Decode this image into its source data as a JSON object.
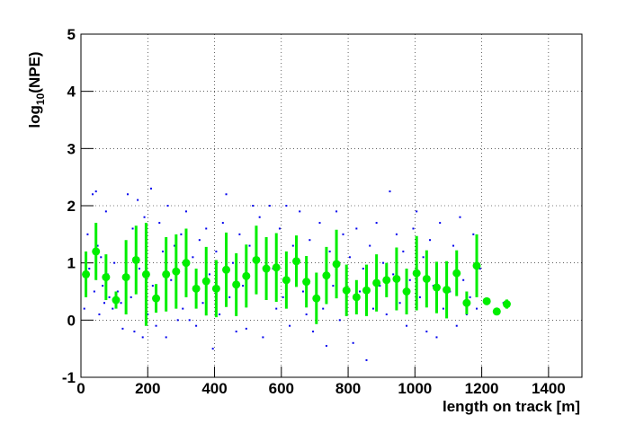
{
  "chart_data": {
    "type": "scatter",
    "x_label": "length on track [m]",
    "y_label": {
      "base": "log",
      "sub": "10",
      "rest": "(NPE)"
    },
    "xlim": [
      0,
      1500
    ],
    "ylim": [
      -1,
      5
    ],
    "xticks": [
      0,
      200,
      400,
      600,
      800,
      1000,
      1200,
      1400
    ],
    "yticks": [
      -1,
      0,
      1,
      2,
      3,
      4,
      5
    ],
    "grid": true,
    "scatter": {
      "color": "#0000ee",
      "x": [
        10,
        20,
        25,
        35,
        40,
        45,
        50,
        55,
        60,
        65,
        70,
        75,
        80,
        85,
        95,
        100,
        110,
        120,
        125,
        135,
        140,
        150,
        155,
        160,
        170,
        175,
        185,
        190,
        200,
        210,
        215,
        225,
        235,
        245,
        255,
        260,
        270,
        280,
        290,
        300,
        305,
        315,
        325,
        335,
        345,
        355,
        365,
        375,
        385,
        395,
        405,
        415,
        425,
        435,
        445,
        455,
        465,
        475,
        485,
        495,
        505,
        515,
        525,
        535,
        545,
        555,
        565,
        575,
        585,
        595,
        605,
        615,
        625,
        635,
        645,
        655,
        665,
        675,
        685,
        695,
        705,
        715,
        725,
        735,
        745,
        755,
        765,
        775,
        785,
        795,
        805,
        815,
        825,
        835,
        845,
        855,
        865,
        875,
        885,
        895,
        905,
        915,
        925,
        935,
        945,
        955,
        965,
        975,
        985,
        995,
        1005,
        1015,
        1025,
        1035,
        1045,
        1055,
        1065,
        1075,
        1085,
        1095,
        1105,
        1115,
        1125,
        1135,
        1145,
        1155,
        1165,
        1175,
        1185,
        1195,
        1215,
        1245,
        1265
      ],
      "y": [
        0.2,
        1.5,
        0.9,
        2.2,
        0.5,
        2.25,
        1.3,
        0.1,
        1.1,
        0.6,
        0.3,
        1.9,
        0.8,
        0.4,
        0.2,
        1.0,
        0.5,
        0.3,
        -0.15,
        1.3,
        2.2,
        0.4,
        1.6,
        -0.2,
        2.1,
        0.9,
        -0.3,
        1.8,
        0.1,
        2.3,
        0.6,
        -0.1,
        1.7,
        1.2,
        -0.3,
        2.0,
        0.7,
        1.3,
        0.0,
        1.5,
        0.2,
        1.9,
        0.0,
        1.1,
        -0.1,
        1.4,
        0.3,
        1.6,
        0.8,
        -0.5,
        1.2,
        0.1,
        1.7,
        2.2,
        0.4,
        1.0,
        -0.2,
        1.5,
        0.6,
        -0.15,
        1.3,
        2.0,
        0.5,
        1.8,
        -0.3,
        1.2,
        2.0,
        0.9,
        0.2,
        1.6,
        0.4,
        2.0,
        -0.1,
        1.3,
        0.9,
        1.9,
        0.5,
        0.1,
        1.4,
        -0.2,
        0.8,
        1.7,
        0.2,
        -0.45,
        1.2,
        0.6,
        1.9,
        0.0,
        1.5,
        0.3,
        1.1,
        -0.4,
        1.6,
        0.5,
        0.9,
        -0.7,
        1.3,
        0.2,
        1.7,
        0.6,
        1.0,
        0.1,
        2.25,
        0.8,
        1.5,
        0.3,
        1.2,
        -0.1,
        0.7,
        1.6,
        1.9,
        0.4,
        1.1,
        -0.2,
        1.4,
        0.6,
        -0.3,
        1.7,
        0.2,
        1.0,
        0.5,
        1.3,
        -0.1,
        1.8,
        0.7,
        0.1,
        0.4,
        1.5,
        0.2,
        0.9,
        0.35,
        0.15,
        0.3
      ]
    },
    "profile": {
      "color": "#00ee00",
      "x": [
        15,
        45,
        75,
        105,
        135,
        165,
        195,
        225,
        255,
        285,
        315,
        345,
        375,
        405,
        435,
        465,
        495,
        525,
        555,
        585,
        615,
        645,
        675,
        705,
        735,
        765,
        795,
        825,
        855,
        885,
        915,
        945,
        975,
        1005,
        1035,
        1065,
        1095,
        1125,
        1155,
        1185,
        1215,
        1245,
        1275
      ],
      "values": [
        0.8,
        1.2,
        0.75,
        0.35,
        0.75,
        1.05,
        0.8,
        0.38,
        0.8,
        0.85,
        1.0,
        0.55,
        0.68,
        0.55,
        0.88,
        0.62,
        0.77,
        1.05,
        0.9,
        0.92,
        0.7,
        1.03,
        0.67,
        0.38,
        0.78,
        0.98,
        0.52,
        0.4,
        0.52,
        0.65,
        0.7,
        0.72,
        0.5,
        0.82,
        0.72,
        0.57,
        0.53,
        0.82,
        0.3,
        0.95,
        0.33,
        0.15,
        0.28
      ],
      "errors": [
        0.4,
        0.5,
        0.4,
        0.15,
        0.65,
        0.6,
        0.9,
        0.25,
        0.65,
        0.65,
        0.6,
        0.35,
        0.6,
        0.5,
        0.65,
        0.55,
        0.55,
        0.6,
        0.55,
        0.6,
        0.5,
        0.45,
        0.45,
        0.45,
        0.5,
        0.6,
        0.45,
        0.3,
        0.45,
        0.5,
        0.3,
        0.55,
        0.4,
        0.65,
        0.5,
        0.45,
        0.5,
        0.4,
        0.2,
        0.55,
        0.03,
        0.03,
        0.08
      ]
    }
  }
}
